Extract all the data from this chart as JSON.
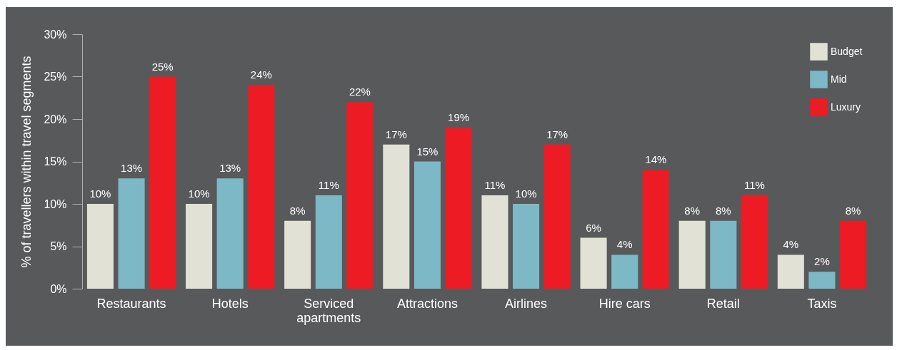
{
  "chart_data": {
    "type": "bar",
    "ylabel": "% of travellers within travel segments",
    "categories": [
      "Restaurants",
      "Hotels",
      "Serviced apartments",
      "Attractions",
      "Airlines",
      "Hire cars",
      "Retail",
      "Taxis"
    ],
    "series": [
      {
        "name": "Budget",
        "color": "#e1e2d5",
        "values": [
          10,
          10,
          8,
          17,
          11,
          6,
          8,
          4
        ],
        "value_labels": [
          "10%",
          "10%",
          "8%",
          "17%",
          "11%",
          "6%",
          "8%",
          "4%"
        ]
      },
      {
        "name": "Mid",
        "color": "#7db8c7",
        "values": [
          13,
          13,
          11,
          15,
          10,
          4,
          8,
          2
        ],
        "value_labels": [
          "13%",
          "13%",
          "11%",
          "15%",
          "10%",
          "4%",
          "8%",
          "2%"
        ]
      },
      {
        "name": "Luxury",
        "color": "#ed1c24",
        "values": [
          25,
          24,
          22,
          19,
          17,
          14,
          11,
          8
        ],
        "value_labels": [
          "25%",
          "24%",
          "22%",
          "19%",
          "17%",
          "14%",
          "11%",
          "8%"
        ]
      }
    ],
    "ylim": [
      0,
      30
    ],
    "yticks": [
      {
        "value": 0,
        "label": "0%"
      },
      {
        "value": 5,
        "label": "5%"
      },
      {
        "value": 10,
        "label": "10%"
      },
      {
        "value": 15,
        "label": "15%"
      },
      {
        "value": 20,
        "label": "20%"
      },
      {
        "value": 25,
        "label": "25%"
      },
      {
        "value": 30,
        "label": "30%"
      }
    ],
    "grid": false,
    "legend": "top right"
  }
}
